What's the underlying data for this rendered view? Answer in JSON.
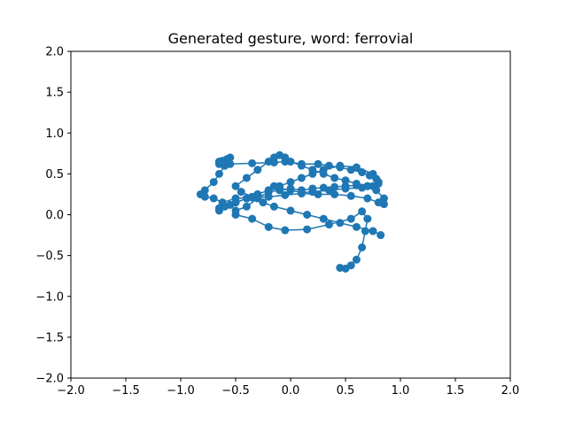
{
  "chart_data": {
    "type": "line",
    "title": "Generated gesture, word: ferrovial",
    "xlabel": "",
    "ylabel": "",
    "xlim": [
      -2.0,
      2.0
    ],
    "ylim": [
      -2.0,
      2.0
    ],
    "x_ticks": [
      "−2.0",
      "−1.5",
      "−1.0",
      "−0.5",
      "0.0",
      "0.5",
      "1.0",
      "1.5",
      "2.0"
    ],
    "y_ticks": [
      "−2.0",
      "−1.5",
      "−1.0",
      "−0.5",
      "0.0",
      "0.5",
      "1.0",
      "1.5",
      "2.0"
    ],
    "grid": false,
    "legend": "none",
    "marker": "circle",
    "color": "#1f77b4",
    "series": [
      {
        "x": [
          0.45,
          0.5,
          0.55,
          0.6,
          0.65,
          0.68,
          0.7,
          0.65,
          0.55,
          0.35,
          0.15,
          -0.05,
          -0.2,
          -0.35,
          -0.5,
          -0.5,
          -0.4,
          -0.3,
          -0.2,
          -0.1,
          0.0,
          0.1,
          0.2,
          0.3,
          0.4,
          0.5,
          0.6,
          0.7,
          0.78,
          0.85,
          0.85,
          0.8,
          0.7,
          0.55,
          0.4,
          0.25,
          0.1,
          -0.05,
          -0.2,
          -0.35,
          -0.5,
          -0.62,
          -0.7,
          -0.78,
          -0.82,
          -0.78,
          -0.7,
          -0.65,
          -0.6,
          -0.55,
          -0.58,
          -0.62,
          -0.65,
          -0.65,
          -0.6,
          -0.55,
          -0.35,
          -0.15,
          -0.05,
          0.1,
          0.25,
          0.35,
          0.45,
          0.55,
          0.65,
          0.72,
          0.78,
          0.8,
          0.75,
          0.65,
          0.5,
          0.35,
          0.2,
          0.1,
          0.0,
          -0.1,
          -0.15,
          -0.2,
          -0.3,
          -0.4,
          -0.55,
          -0.65,
          -0.65,
          -0.6,
          -0.5,
          -0.4,
          -0.3,
          -0.2,
          -0.1,
          0.0,
          0.1,
          0.2,
          0.3,
          0.45,
          0.6,
          0.75,
          0.8,
          0.7,
          0.6,
          0.5,
          0.4,
          0.3,
          0.2,
          0.1,
          0.0,
          -0.05,
          -0.1,
          -0.15,
          -0.2,
          -0.3,
          -0.4,
          -0.5,
          -0.45,
          -0.35,
          -0.25,
          -0.15,
          0.0,
          0.15,
          0.3,
          0.45,
          0.6,
          0.75,
          0.82
        ],
        "y": [
          -0.65,
          -0.66,
          -0.62,
          -0.55,
          -0.4,
          -0.2,
          -0.05,
          0.04,
          -0.05,
          -0.12,
          -0.18,
          -0.19,
          -0.15,
          -0.05,
          0.0,
          0.05,
          0.1,
          0.2,
          0.28,
          0.3,
          0.32,
          0.3,
          0.32,
          0.33,
          0.34,
          0.35,
          0.36,
          0.35,
          0.3,
          0.2,
          0.13,
          0.15,
          0.2,
          0.23,
          0.25,
          0.25,
          0.26,
          0.24,
          0.22,
          0.21,
          0.2,
          0.15,
          0.2,
          0.22,
          0.25,
          0.3,
          0.4,
          0.5,
          0.6,
          0.7,
          0.68,
          0.66,
          0.65,
          0.62,
          0.6,
          0.62,
          0.63,
          0.64,
          0.65,
          0.62,
          0.62,
          0.6,
          0.58,
          0.55,
          0.52,
          0.48,
          0.44,
          0.38,
          0.35,
          0.33,
          0.32,
          0.3,
          0.28,
          0.27,
          0.3,
          0.32,
          0.35,
          0.3,
          0.25,
          0.2,
          0.12,
          0.08,
          0.05,
          0.1,
          0.15,
          0.2,
          0.25,
          0.3,
          0.35,
          0.4,
          0.45,
          0.5,
          0.55,
          0.6,
          0.58,
          0.5,
          0.4,
          0.35,
          0.38,
          0.42,
          0.45,
          0.5,
          0.55,
          0.6,
          0.65,
          0.7,
          0.73,
          0.7,
          0.65,
          0.55,
          0.45,
          0.35,
          0.28,
          0.22,
          0.15,
          0.1,
          0.05,
          0.0,
          -0.05,
          -0.1,
          -0.15,
          -0.2,
          -0.25
        ]
      }
    ]
  }
}
